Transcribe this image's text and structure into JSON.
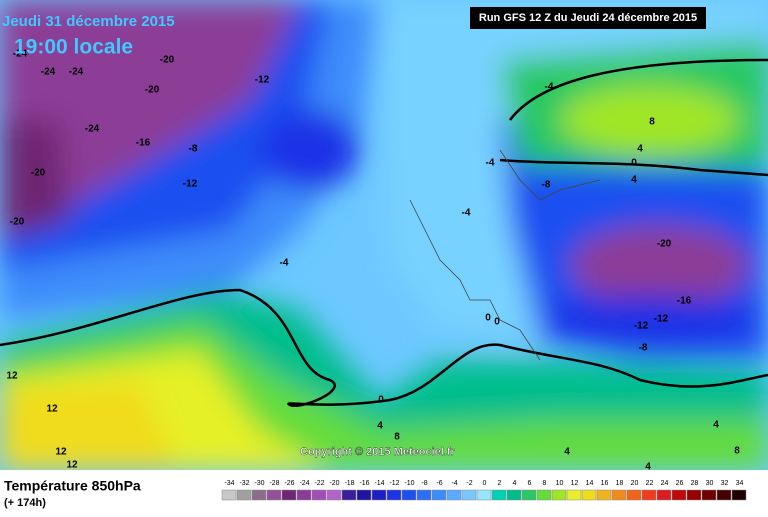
{
  "header": {
    "date": "Jeudi 31 décembre 2015",
    "time": "19:00 locale",
    "run": "Run GFS 12 Z du Jeudi 24 décembre 2015"
  },
  "footer": {
    "title": "Température 850hPa",
    "subtitle": "(+ 174h)",
    "copyright": "Copyright © 2015 Meteociel.fr"
  },
  "legend": {
    "values": [
      -34,
      -32,
      -30,
      -28,
      -26,
      -24,
      -22,
      -20,
      -18,
      -16,
      -14,
      -12,
      -10,
      -8,
      -6,
      -4,
      -2,
      0,
      2,
      4,
      6,
      8,
      10,
      12,
      14,
      16,
      18,
      20,
      22,
      24,
      26,
      28,
      30,
      32,
      34
    ],
    "colors": [
      "#c8c8c8",
      "#a0a0a0",
      "#8c6e8c",
      "#96509b",
      "#6e2873",
      "#8c3c96",
      "#a050b4",
      "#b464c8",
      "#3c1e9b",
      "#1e14a0",
      "#1e1ec8",
      "#1e32e6",
      "#1e50f0",
      "#2d6ef5",
      "#3c8cfa",
      "#5aaaff",
      "#78c8ff",
      "#96e6ff",
      "#00d2b4",
      "#00be8c",
      "#28c864",
      "#64dc3c",
      "#a0e628",
      "#e6f028",
      "#f0dc1e",
      "#f0b41e",
      "#f08c1e",
      "#f0641e",
      "#f03c1e",
      "#dc1e1e",
      "#be0a0a",
      "#960000",
      "#6e0000",
      "#460000",
      "#1e0000"
    ]
  },
  "contour_labels": [
    -24,
    -24,
    -24,
    -20,
    -20,
    -12,
    -24,
    -16,
    -8,
    -12,
    -20,
    -20,
    -4,
    -4,
    -4,
    -4,
    -8,
    8,
    4,
    0,
    4,
    -20,
    -16,
    -12,
    -12,
    -8,
    0,
    0,
    0,
    4,
    8,
    12,
    12,
    12,
    12,
    4,
    8,
    4,
    4
  ]
}
